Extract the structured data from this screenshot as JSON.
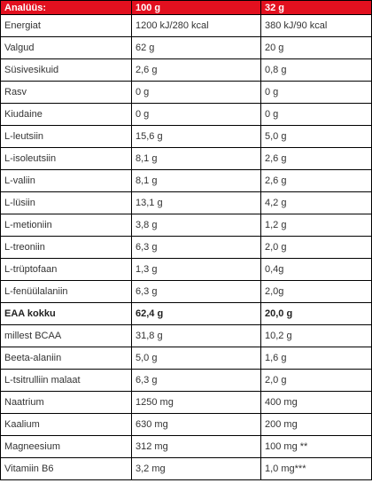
{
  "table": {
    "header": [
      "Analüüs:",
      "100 g",
      "32 g"
    ],
    "rows": [
      {
        "name": "Energiat",
        "per100": "1200 kJ/280 kcal",
        "perServing": "380 kJ/90 kcal"
      },
      {
        "name": "Valgud",
        "per100": "62 g",
        "perServing": "20 g"
      },
      {
        "name": "Süsivesikuid",
        "per100": "2,6 g",
        "perServing": "0,8 g"
      },
      {
        "name": "Rasv",
        "per100": "0 g",
        "perServing": "0 g"
      },
      {
        "name": "Kiudaine",
        "per100": "0 g",
        "perServing": "0 g"
      },
      {
        "name": "L-leutsiin",
        "per100": "15,6 g",
        "perServing": "5,0 g"
      },
      {
        "name": "L-isoleutsiin",
        "per100": "8,1 g",
        "perServing": "2,6 g"
      },
      {
        "name": "L-valiin",
        "per100": "8,1 g",
        "perServing": "2,6 g"
      },
      {
        "name": "L-lüsiin",
        "per100": "13,1 g",
        "perServing": "4,2 g"
      },
      {
        "name": "L-metioniin",
        "per100": "3,8 g",
        "perServing": "1,2 g"
      },
      {
        "name": "L-treoniin",
        "per100": "6,3 g",
        "perServing": "2,0 g"
      },
      {
        "name": "L-trüptofaan",
        "per100": "1,3 g",
        "perServing": "0,4g"
      },
      {
        "name": "L-fenüülalaniin",
        "per100": "6,3 g",
        "perServing": "2,0g"
      },
      {
        "name": "EAA kokku",
        "per100": "62,4 g",
        "perServing": "20,0 g",
        "bold": true
      },
      {
        "name": "millest BCAA",
        "per100": "31,8 g",
        "perServing": "10,2 g"
      },
      {
        "name": "Beeta-alaniin",
        "per100": "5,0 g",
        "perServing": "1,6 g"
      },
      {
        "name": "L-tsitrulliin malaat",
        "per100": "6,3 g",
        "perServing": "2,0 g"
      },
      {
        "name": "Naatrium",
        "per100": "1250 mg",
        "perServing": "400 mg"
      },
      {
        "name": "Kaalium",
        "per100": "630 mg",
        "perServing": "200 mg"
      },
      {
        "name": "Magneesium",
        "per100": "312 mg",
        "perServing": "100 mg **"
      },
      {
        "name": "Vitamiin B6",
        "per100": "3,2 mg",
        "perServing": "1,0 mg***"
      }
    ]
  },
  "colors": {
    "header_bg": "#e2101f",
    "header_text": "#ffffff",
    "border": "#000000",
    "text": "#333333"
  }
}
